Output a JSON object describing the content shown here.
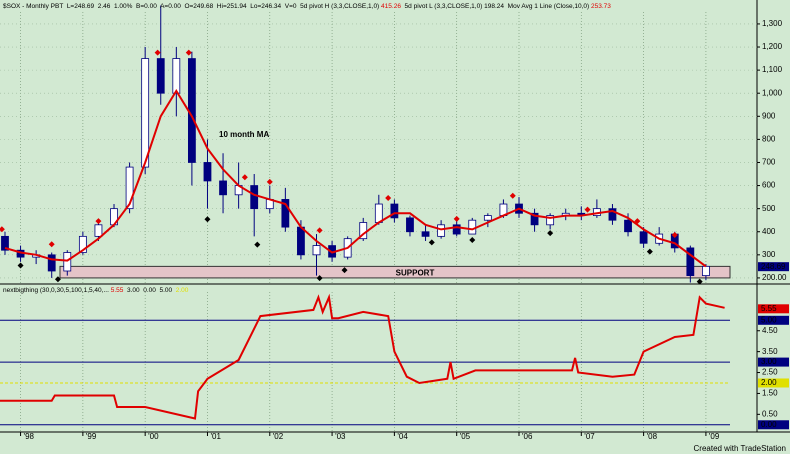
{
  "chart_data": {
    "type": "candlestick",
    "header": [
      {
        "text": "$SOX - Monthly PBT  L=248.69  2.46  1.00%  B=0.00  A=0.00  O=249.68  Hi=251.94  Lo=246.34  V=0  5d pivot H (3,3,CLOSE,1,0) ",
        "color": "#000000"
      },
      {
        "text": "415.26",
        "color": "#e00000"
      },
      {
        "text": "  5d pivot L (3,3,CLOSE,1,0) ",
        "color": "#000000"
      },
      {
        "text": "198.24",
        "color": "#000000"
      },
      {
        "text": "  Mov Avg 1 Line (Close,10,0) ",
        "color": "#000000"
      },
      {
        "text": "253.73",
        "color": "#e00000"
      }
    ],
    "x": [
      1997.75,
      1998.0,
      1998.25,
      1998.5,
      1998.75,
      1999.0,
      1999.25,
      1999.5,
      1999.75,
      2000.0,
      2000.25,
      2000.5,
      2000.75,
      2001.0,
      2001.25,
      2001.5,
      2001.75,
      2002.0,
      2002.25,
      2002.5,
      2002.75,
      2003.0,
      2003.25,
      2003.5,
      2003.75,
      2004.0,
      2004.25,
      2004.5,
      2004.75,
      2005.0,
      2005.25,
      2005.5,
      2005.75,
      2006.0,
      2006.25,
      2006.5,
      2006.75,
      2007.0,
      2007.25,
      2007.5,
      2007.75,
      2008.0,
      2008.25,
      2008.5,
      2008.75,
      2009.0
    ],
    "open": [
      380,
      320,
      290,
      300,
      230,
      310,
      380,
      430,
      500,
      680,
      1150,
      1000,
      1150,
      700,
      620,
      560,
      600,
      500,
      540,
      420,
      300,
      340,
      290,
      370,
      440,
      520,
      460,
      400,
      380,
      430,
      390,
      450,
      470,
      520,
      480,
      430,
      470,
      480,
      470,
      500,
      450,
      400,
      350,
      390,
      330,
      210
    ],
    "high": [
      400,
      340,
      320,
      310,
      320,
      400,
      450,
      520,
      700,
      1200,
      1380,
      1200,
      1180,
      800,
      740,
      700,
      650,
      600,
      590,
      450,
      390,
      360,
      380,
      460,
      560,
      540,
      470,
      430,
      450,
      450,
      460,
      480,
      540,
      550,
      500,
      480,
      500,
      510,
      540,
      520,
      480,
      420,
      420,
      400,
      340,
      260
    ],
    "low": [
      300,
      270,
      260,
      200,
      210,
      300,
      360,
      420,
      480,
      650,
      950,
      900,
      600,
      500,
      480,
      500,
      380,
      480,
      400,
      280,
      210,
      270,
      280,
      360,
      430,
      440,
      380,
      360,
      370,
      380,
      390,
      420,
      460,
      460,
      400,
      410,
      450,
      450,
      460,
      430,
      380,
      330,
      340,
      310,
      180,
      190
    ],
    "close": [
      320,
      290,
      300,
      230,
      310,
      380,
      430,
      500,
      680,
      1150,
      1000,
      1150,
      700,
      620,
      560,
      600,
      500,
      540,
      420,
      300,
      340,
      290,
      370,
      440,
      520,
      460,
      400,
      380,
      430,
      390,
      450,
      470,
      520,
      480,
      430,
      470,
      480,
      470,
      500,
      450,
      400,
      350,
      390,
      330,
      210,
      250
    ],
    "up_color": "#ffffff",
    "down_color": "#00007f",
    "ma": {
      "color": "#e00000",
      "values": [
        330,
        310,
        300,
        280,
        275,
        320,
        370,
        430,
        520,
        700,
        900,
        1010,
        900,
        760,
        670,
        600,
        560,
        540,
        520,
        420,
        360,
        310,
        330,
        390,
        440,
        480,
        480,
        430,
        410,
        420,
        410,
        440,
        470,
        500,
        470,
        460,
        470,
        470,
        480,
        490,
        460,
        410,
        370,
        350,
        300,
        250
      ]
    },
    "annotation": "10 month MA",
    "support": {
      "label": "SUPPORT",
      "range": [
        200,
        250
      ],
      "color": "#e4c4c8"
    },
    "pivot_highs": {
      "color": "#e00000",
      "x": [
        1997.7,
        1998.5,
        1999.25,
        2000.2,
        2000.7,
        2001.6,
        2002.0,
        2002.8,
        2003.9,
        2005.0,
        2005.9,
        2007.1,
        2007.9,
        2008.5
      ],
      "values": [
        385,
        320,
        420,
        1150,
        1150,
        610,
        590,
        380,
        520,
        430,
        530,
        470,
        420,
        360
      ]
    },
    "pivot_lows": {
      "color": "#000000",
      "x": [
        1998.0,
        1998.6,
        2001.0,
        2001.8,
        2002.8,
        2003.2,
        2004.6,
        2005.25,
        2006.5,
        2008.1,
        2008.9
      ],
      "values": [
        280,
        220,
        480,
        370,
        225,
        260,
        380,
        390,
        420,
        340,
        210
      ]
    },
    "xlim": [
      1997.67,
      2009.82
    ],
    "xticks": [
      {
        "value": 1998,
        "label": "'98"
      },
      {
        "value": 1999,
        "label": "'99"
      },
      {
        "value": 2000,
        "label": "'00"
      },
      {
        "value": 2001,
        "label": "'01"
      },
      {
        "value": 2002,
        "label": "'02"
      },
      {
        "value": 2003,
        "label": "'03"
      },
      {
        "value": 2004,
        "label": "'04"
      },
      {
        "value": 2005,
        "label": "'05"
      },
      {
        "value": 2006,
        "label": "'06"
      },
      {
        "value": 2007,
        "label": "'07"
      },
      {
        "value": 2008,
        "label": "'08"
      },
      {
        "value": 2009,
        "label": "'09"
      }
    ],
    "ylim": [
      178,
      1395
    ],
    "yticks": [
      {
        "value": 200,
        "label": "200.00"
      },
      300,
      400,
      500,
      600,
      700,
      800,
      900,
      {
        "value": 1000,
        "label": "1,000"
      },
      {
        "value": 1100,
        "label": "1,100"
      },
      {
        "value": 1200,
        "label": "1,200"
      },
      {
        "value": 1300,
        "label": "1,300"
      }
    ],
    "last_price": {
      "value": 248.69,
      "label": "248.69"
    },
    "grid": true,
    "indicator": {
      "header": [
        {
          "text": "nextbigthing (30,0,30,5,100,1,5,40,... ",
          "color": "#000000"
        },
        {
          "text": "5.55",
          "color": "#e00000"
        },
        {
          "text": "  3.00  0.00  5.00  ",
          "color": "#000000"
        },
        {
          "text": "2.00",
          "color": "#e0e000"
        }
      ],
      "x": [
        1997.67,
        1998.5,
        1998.55,
        1999.5,
        1999.55,
        2000.0,
        2000.8,
        2000.85,
        2001.0,
        2001.5,
        2001.85,
        2002.7,
        2002.78,
        2002.85,
        2002.95,
        2003.0,
        2003.1,
        2003.5,
        2003.9,
        2004.0,
        2004.2,
        2004.4,
        2004.85,
        2004.9,
        2004.95,
        2005.3,
        2006.85,
        2006.9,
        2006.95,
        2007.5,
        2007.85,
        2008.0,
        2008.5,
        2008.8,
        2008.9,
        2009.0,
        2009.3
      ],
      "values": [
        1.15,
        1.15,
        1.4,
        1.4,
        0.85,
        0.85,
        0.3,
        1.6,
        2.2,
        3.1,
        5.2,
        5.5,
        6.1,
        5.4,
        6.1,
        5.1,
        5.1,
        5.4,
        5.2,
        3.5,
        2.3,
        2.0,
        2.2,
        3.0,
        2.2,
        2.6,
        2.6,
        3.2,
        2.5,
        2.3,
        2.4,
        3.5,
        4.2,
        4.3,
        6.1,
        5.8,
        5.6
      ],
      "color": "#e00000",
      "ylim": [
        -0.25,
        6.45
      ],
      "yticks": [
        {
          "value": 0.5,
          "label": "0.50"
        },
        {
          "value": 1.5,
          "label": "1.50"
        },
        {
          "value": 2.5,
          "label": "2.50"
        },
        {
          "value": 3.5,
          "label": "3.50"
        },
        {
          "value": 4.5,
          "label": "4.50"
        }
      ],
      "levels": [
        {
          "value": 5,
          "label": "5.00",
          "color": "#000080"
        },
        {
          "value": 3,
          "label": "3.00",
          "color": "#000080"
        },
        {
          "value": 2,
          "label": "2.00",
          "color": "#e0e000"
        },
        {
          "value": 0,
          "label": "0.00",
          "color": "#000080"
        }
      ],
      "current": {
        "value": 5.55,
        "label": "5.55",
        "color": "#e00000"
      }
    },
    "footer": "Created with TradeStation"
  }
}
